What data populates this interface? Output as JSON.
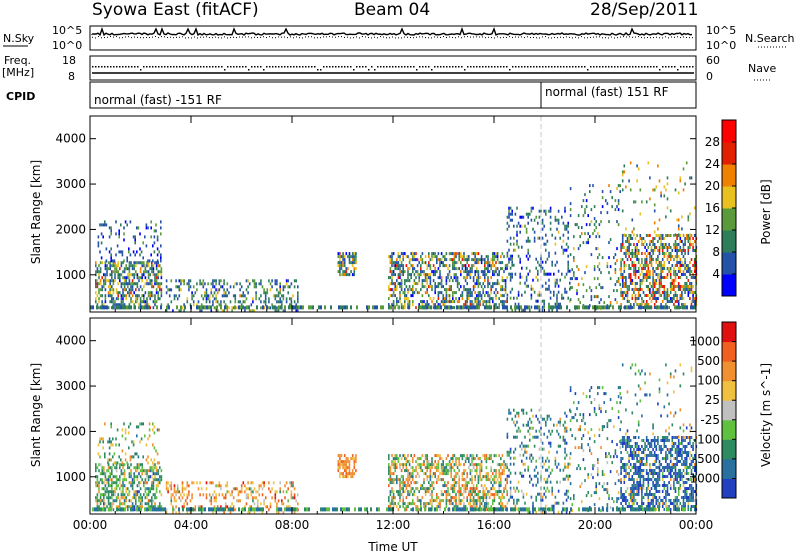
{
  "header": {
    "station": "Syowa East (fitACF)",
    "beam": "Beam 04",
    "date": "28/Sep/2011"
  },
  "panels": {
    "noise": {
      "left_label": "N.Sky",
      "right_label": "N.Search",
      "left_ticks": [
        "10^5",
        "10^0"
      ],
      "right_ticks": [
        "10^5",
        "10^0"
      ]
    },
    "freq": {
      "left_label": "Freq.",
      "left_unit": "[MHz]",
      "right_label": "Nave",
      "left_ticks": [
        "18",
        "8"
      ],
      "right_ticks": [
        "60",
        "0"
      ]
    },
    "cpid": {
      "label": "CPID",
      "segments": [
        {
          "text": "normal (fast) -151 RF",
          "start_hour": 0
        },
        {
          "text": "normal (fast) 151 RF",
          "start_hour": 18
        }
      ]
    }
  },
  "chart_data": [
    {
      "type": "heatmap",
      "title": "",
      "xlabel": "Time UT",
      "ylabel": "Slant Range [km]",
      "x_ticks": [
        "00:00",
        "04:00",
        "08:00",
        "12:00",
        "16:00",
        "20:00",
        "00:00"
      ],
      "xlim_hours": [
        0,
        24
      ],
      "ylim": [
        180,
        4500
      ],
      "y_ticks": [
        1000,
        2000,
        3000,
        4000
      ],
      "colorbar": {
        "label": "Power [dB]",
        "ticks": [
          "4",
          "8",
          "12",
          "16",
          "20",
          "24",
          "28"
        ],
        "colors": [
          "#0000ff",
          "#2452a8",
          "#2e7d5a",
          "#5a9a3a",
          "#e8c020",
          "#f08000",
          "#e02000",
          "#ff0000"
        ]
      },
      "echo_regions": [
        {
          "hours": [
            0.2,
            2.8
          ],
          "range_km": [
            250,
            1300
          ],
          "weights": [
            0.05,
            0.25,
            0.3,
            0.2,
            0.12,
            0.05,
            0.02,
            0.01
          ],
          "density": 0.55
        },
        {
          "hours": [
            0.3,
            2.8
          ],
          "range_km": [
            1300,
            2200
          ],
          "weights": [
            0.3,
            0.4,
            0.2,
            0.1,
            0,
            0,
            0,
            0
          ],
          "density": 0.15
        },
        {
          "hours": [
            3.0,
            8.2
          ],
          "range_km": [
            200,
            900
          ],
          "weights": [
            0.05,
            0.3,
            0.35,
            0.2,
            0.08,
            0.02,
            0,
            0
          ],
          "density": 0.3
        },
        {
          "hours": [
            9.8,
            10.5
          ],
          "range_km": [
            1000,
            1500
          ],
          "weights": [
            0.05,
            0.2,
            0.2,
            0.15,
            0.2,
            0.15,
            0.05,
            0
          ],
          "density": 0.6
        },
        {
          "hours": [
            11.8,
            16.5
          ],
          "range_km": [
            250,
            1500
          ],
          "weights": [
            0.05,
            0.3,
            0.25,
            0.15,
            0.12,
            0.08,
            0.04,
            0.01
          ],
          "density": 0.5
        },
        {
          "hours": [
            16.5,
            19.0
          ],
          "range_km": [
            250,
            2500
          ],
          "weights": [
            0.1,
            0.45,
            0.3,
            0.1,
            0.05,
            0,
            0,
            0
          ],
          "density": 0.2
        },
        {
          "hours": [
            19.0,
            21.0
          ],
          "range_km": [
            250,
            3000
          ],
          "weights": [
            0.05,
            0.3,
            0.3,
            0.2,
            0.1,
            0.05,
            0,
            0
          ],
          "density": 0.12
        },
        {
          "hours": [
            21.0,
            24.0
          ],
          "range_km": [
            250,
            1900
          ],
          "weights": [
            0.03,
            0.2,
            0.2,
            0.15,
            0.15,
            0.15,
            0.08,
            0.04
          ],
          "density": 0.55
        },
        {
          "hours": [
            21.0,
            24.0
          ],
          "range_km": [
            1900,
            3500
          ],
          "weights": [
            0,
            0.1,
            0.2,
            0.2,
            0.3,
            0.2,
            0,
            0
          ],
          "density": 0.06
        }
      ]
    },
    {
      "type": "heatmap",
      "title": "",
      "xlabel": "Time UT",
      "ylabel": "Slant Range [km]",
      "x_ticks": [
        "00:00",
        "04:00",
        "08:00",
        "12:00",
        "16:00",
        "20:00",
        "00:00"
      ],
      "xlim_hours": [
        0,
        24
      ],
      "ylim": [
        180,
        4500
      ],
      "y_ticks": [
        1000,
        2000,
        3000,
        4000
      ],
      "colorbar": {
        "label": "Velocity [m s^-1]",
        "ticks": [
          "1000",
          "500",
          "100",
          "25",
          "-25",
          "-100",
          "-500",
          "-1000"
        ],
        "colors": [
          "#2040c0",
          "#2870a0",
          "#2e8a60",
          "#60c040",
          "#c0c0c0",
          "#f0c040",
          "#f09030",
          "#f06020",
          "#e01010"
        ]
      },
      "echo_regions": [
        {
          "hours": [
            0.2,
            2.8
          ],
          "range_km": [
            250,
            1300
          ],
          "weights": [
            0.02,
            0.08,
            0.4,
            0.25,
            0.05,
            0.1,
            0.08,
            0.02,
            0
          ],
          "density": 0.55
        },
        {
          "hours": [
            0.3,
            2.8
          ],
          "range_km": [
            1300,
            2200
          ],
          "weights": [
            0,
            0.1,
            0.3,
            0.1,
            0,
            0.3,
            0.2,
            0,
            0
          ],
          "density": 0.15
        },
        {
          "hours": [
            3.0,
            8.2
          ],
          "range_km": [
            200,
            900
          ],
          "weights": [
            0,
            0,
            0.05,
            0.05,
            0.1,
            0.3,
            0.3,
            0.15,
            0.05
          ],
          "density": 0.3
        },
        {
          "hours": [
            9.8,
            10.5
          ],
          "range_km": [
            1000,
            1500
          ],
          "weights": [
            0,
            0,
            0,
            0,
            0,
            0.2,
            0.5,
            0.3,
            0
          ],
          "density": 0.6
        },
        {
          "hours": [
            11.8,
            16.5
          ],
          "range_km": [
            250,
            1500
          ],
          "weights": [
            0,
            0.05,
            0.25,
            0.15,
            0.05,
            0.15,
            0.25,
            0.1,
            0
          ],
          "density": 0.5
        },
        {
          "hours": [
            16.5,
            19.0
          ],
          "range_km": [
            250,
            2500
          ],
          "weights": [
            0.1,
            0.3,
            0.3,
            0.1,
            0.05,
            0.1,
            0.05,
            0,
            0
          ],
          "density": 0.2
        },
        {
          "hours": [
            19.0,
            21.0
          ],
          "range_km": [
            250,
            3000
          ],
          "weights": [
            0.1,
            0.3,
            0.3,
            0.1,
            0.05,
            0.1,
            0.05,
            0,
            0
          ],
          "density": 0.12
        },
        {
          "hours": [
            21.0,
            24.0
          ],
          "range_km": [
            250,
            1900
          ],
          "weights": [
            0.35,
            0.35,
            0.15,
            0.05,
            0.02,
            0.05,
            0.03,
            0,
            0
          ],
          "density": 0.55
        },
        {
          "hours": [
            21.0,
            24.0
          ],
          "range_km": [
            1900,
            3500
          ],
          "weights": [
            0.1,
            0.2,
            0.3,
            0.1,
            0,
            0.2,
            0.1,
            0,
            0
          ],
          "density": 0.06
        }
      ]
    }
  ]
}
